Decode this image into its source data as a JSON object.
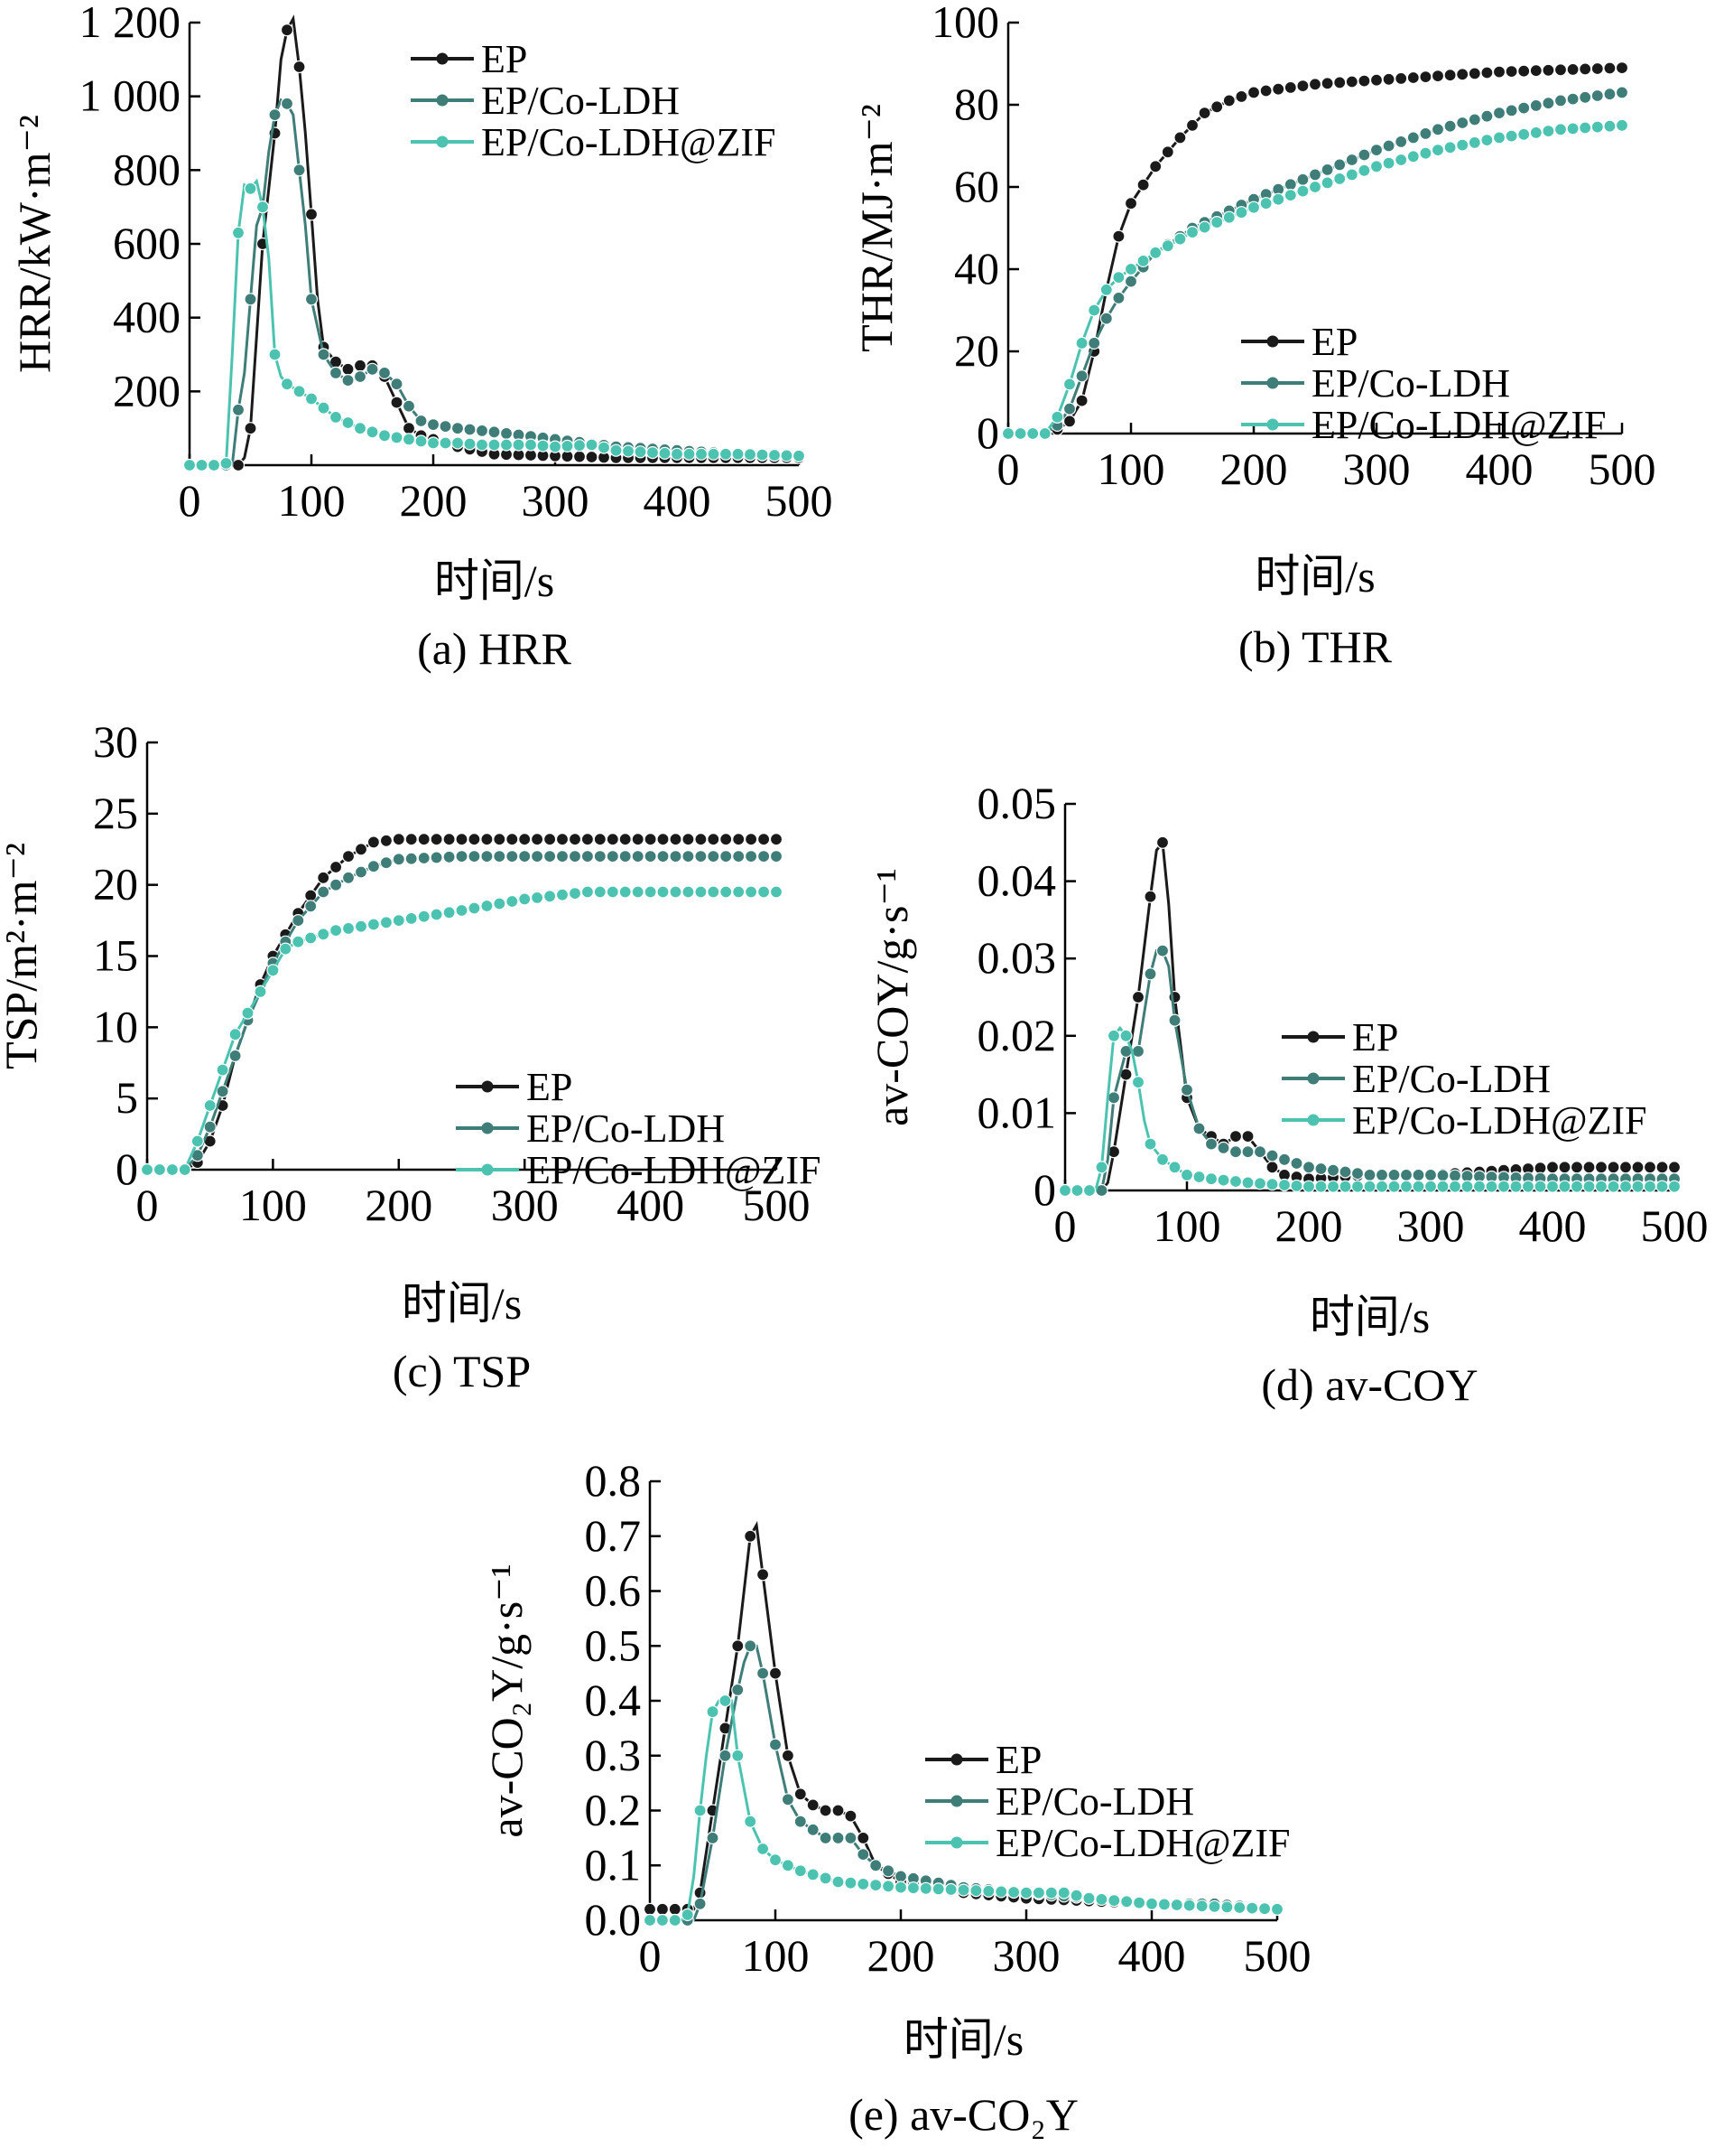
{
  "colors": {
    "EP": "#1a1a1a",
    "EP/Co-LDH": "#3f7d78",
    "EP/Co-LDH@ZIF": "#4cc3b0"
  },
  "chart_data": [
    {
      "id": "a",
      "type": "line",
      "caption": "(a) HRR",
      "xlabel": "时间/s",
      "ylabel": "HRR/kW·m⁻²",
      "xlim": [
        0,
        500
      ],
      "ylim": [
        0,
        1200
      ],
      "xticks": [
        0,
        100,
        200,
        300,
        400,
        500
      ],
      "xtick_labels": [
        "0",
        "100",
        "200",
        "300",
        "400",
        "500"
      ],
      "yticks": [
        200,
        400,
        600,
        800,
        1000,
        1200
      ],
      "ytick_labels": [
        "200",
        "400",
        "600",
        "800",
        "1 000",
        "1 200"
      ],
      "legend_position": "top-right",
      "series": [
        {
          "name": "EP",
          "x": [
            0,
            40,
            45,
            50,
            55,
            60,
            65,
            70,
            75,
            80,
            85,
            90,
            95,
            100,
            105,
            110,
            120,
            130,
            140,
            150,
            160,
            170,
            180,
            190,
            200,
            220,
            250,
            300,
            350,
            400,
            450,
            500
          ],
          "y": [
            0,
            0,
            20,
            100,
            350,
            600,
            750,
            900,
            1100,
            1180,
            1210,
            1080,
            900,
            680,
            450,
            320,
            280,
            260,
            270,
            270,
            240,
            170,
            100,
            80,
            70,
            50,
            30,
            25,
            20,
            20,
            20,
            20
          ]
        },
        {
          "name": "EP/Co-LDH",
          "x": [
            0,
            35,
            40,
            45,
            50,
            55,
            60,
            65,
            70,
            75,
            80,
            85,
            90,
            95,
            100,
            110,
            120,
            130,
            140,
            150,
            160,
            170,
            180,
            190,
            200,
            220,
            250,
            300,
            350,
            400,
            450,
            500
          ],
          "y": [
            0,
            0,
            150,
            250,
            450,
            650,
            700,
            850,
            950,
            990,
            980,
            950,
            800,
            650,
            450,
            300,
            250,
            230,
            240,
            260,
            250,
            220,
            160,
            120,
            110,
            100,
            90,
            70,
            50,
            40,
            30,
            25
          ]
        },
        {
          "name": "EP/Co-LDH@ZIF",
          "x": [
            0,
            25,
            30,
            35,
            40,
            45,
            50,
            55,
            60,
            65,
            70,
            75,
            80,
            90,
            100,
            120,
            140,
            160,
            180,
            200,
            220,
            240,
            260,
            280,
            300,
            330,
            350,
            400,
            450,
            500
          ],
          "y": [
            0,
            0,
            5,
            300,
            630,
            760,
            750,
            770,
            700,
            560,
            300,
            240,
            220,
            200,
            180,
            130,
            100,
            80,
            70,
            60,
            60,
            55,
            55,
            55,
            50,
            55,
            40,
            30,
            30,
            25
          ]
        }
      ]
    },
    {
      "id": "b",
      "type": "line",
      "caption": "(b) THR",
      "xlabel": "时间/s",
      "ylabel": "THR/MJ·m⁻²",
      "xlim": [
        0,
        500
      ],
      "ylim": [
        0,
        100
      ],
      "xticks": [
        0,
        100,
        200,
        300,
        400,
        500
      ],
      "xtick_labels": [
        "0",
        "100",
        "200",
        "300",
        "400",
        "500"
      ],
      "yticks": [
        0,
        20,
        40,
        60,
        80,
        100
      ],
      "ytick_labels": [
        "0",
        "20",
        "40",
        "60",
        "80",
        "100"
      ],
      "legend_position": "lower-right",
      "series": [
        {
          "name": "EP",
          "x": [
            0,
            30,
            40,
            50,
            60,
            70,
            80,
            90,
            100,
            120,
            140,
            160,
            180,
            200,
            250,
            300,
            350,
            400,
            450,
            500
          ],
          "y": [
            0,
            0,
            1,
            3,
            8,
            20,
            35,
            48,
            56,
            65,
            72,
            78,
            81,
            83,
            85,
            86,
            87,
            88,
            88.5,
            89
          ]
        },
        {
          "name": "EP/Co-LDH",
          "x": [
            0,
            30,
            40,
            50,
            60,
            70,
            80,
            90,
            100,
            120,
            150,
            200,
            250,
            300,
            350,
            400,
            450,
            500
          ],
          "y": [
            0,
            0,
            2,
            6,
            14,
            22,
            28,
            33,
            37,
            44,
            50,
            57,
            63,
            69,
            74,
            78,
            81,
            83
          ]
        },
        {
          "name": "EP/Co-LDH@ZIF",
          "x": [
            0,
            30,
            40,
            50,
            60,
            70,
            80,
            90,
            100,
            120,
            150,
            200,
            250,
            300,
            350,
            400,
            450,
            500
          ],
          "y": [
            0,
            0,
            4,
            12,
            22,
            30,
            35,
            38,
            40,
            44,
            49,
            55,
            60,
            65,
            69,
            72,
            74,
            75
          ]
        }
      ]
    },
    {
      "id": "c",
      "type": "line",
      "caption": "(c) TSP",
      "xlabel": "时间/s",
      "ylabel": "TSP/m²·m⁻²",
      "xlim": [
        0,
        500
      ],
      "ylim": [
        0,
        30
      ],
      "xticks": [
        0,
        100,
        200,
        300,
        400,
        500
      ],
      "xtick_labels": [
        "0",
        "100",
        "200",
        "300",
        "400",
        "500"
      ],
      "yticks": [
        0,
        5,
        10,
        15,
        20,
        25,
        30
      ],
      "ytick_labels": [
        "0",
        "5",
        "10",
        "15",
        "20",
        "25",
        "30"
      ],
      "legend_position": "lower-right",
      "series": [
        {
          "name": "EP",
          "x": [
            0,
            30,
            40,
            50,
            60,
            70,
            80,
            90,
            100,
            120,
            140,
            160,
            180,
            200,
            250,
            300,
            400,
            500
          ],
          "y": [
            0,
            0,
            0.5,
            2,
            4.5,
            8,
            10.5,
            13,
            15,
            18,
            20.5,
            22,
            23,
            23.2,
            23.2,
            23.2,
            23.2,
            23.2
          ]
        },
        {
          "name": "EP/Co-LDH",
          "x": [
            0,
            30,
            40,
            50,
            60,
            70,
            80,
            90,
            100,
            120,
            140,
            160,
            180,
            200,
            250,
            300,
            400,
            500
          ],
          "y": [
            0,
            0,
            1,
            3,
            5.5,
            8,
            10.5,
            12.5,
            14.5,
            17.5,
            19.5,
            20.5,
            21.3,
            21.8,
            22,
            22,
            22,
            22
          ]
        },
        {
          "name": "EP/Co-LDH@ZIF",
          "x": [
            0,
            30,
            40,
            50,
            60,
            70,
            80,
            90,
            100,
            110,
            120,
            150,
            200,
            250,
            300,
            350,
            400,
            450,
            500
          ],
          "y": [
            0,
            0,
            2,
            4.5,
            7,
            9.5,
            11,
            12.5,
            14,
            15.5,
            16,
            16.8,
            17.5,
            18.2,
            19,
            19.5,
            19.5,
            19.5,
            19.5
          ]
        }
      ]
    },
    {
      "id": "d",
      "type": "line",
      "caption": "(d) av-COY",
      "xlabel": "时间/s",
      "ylabel": "av-COY/g·s⁻¹",
      "xlim": [
        0,
        500
      ],
      "ylim": [
        0,
        0.05
      ],
      "xticks": [
        0,
        100,
        200,
        300,
        400,
        500
      ],
      "xtick_labels": [
        "0",
        "100",
        "200",
        "300",
        "400",
        "500"
      ],
      "yticks": [
        0,
        0.01,
        0.02,
        0.03,
        0.04,
        0.05
      ],
      "ytick_labels": [
        "0",
        "0.01",
        "0.02",
        "0.03",
        "0.04",
        "0.05"
      ],
      "legend_position": "right",
      "series": [
        {
          "name": "EP",
          "x": [
            0,
            30,
            35,
            40,
            50,
            60,
            70,
            75,
            80,
            85,
            90,
            100,
            110,
            120,
            130,
            140,
            150,
            160,
            170,
            180,
            200,
            250,
            300,
            350,
            400,
            450,
            500
          ],
          "y": [
            0,
            0,
            0.001,
            0.005,
            0.015,
            0.025,
            0.038,
            0.044,
            0.045,
            0.037,
            0.025,
            0.012,
            0.008,
            0.007,
            0.006,
            0.007,
            0.007,
            0.005,
            0.003,
            0.002,
            0.0015,
            0.002,
            0.002,
            0.0025,
            0.003,
            0.003,
            0.003
          ]
        },
        {
          "name": "EP/Co-LDH",
          "x": [
            0,
            30,
            35,
            40,
            50,
            60,
            70,
            75,
            80,
            85,
            90,
            100,
            110,
            120,
            140,
            160,
            180,
            200,
            250,
            300,
            400,
            500
          ],
          "y": [
            0,
            0,
            0.004,
            0.012,
            0.018,
            0.018,
            0.028,
            0.031,
            0.031,
            0.029,
            0.022,
            0.013,
            0.008,
            0.006,
            0.005,
            0.005,
            0.004,
            0.003,
            0.002,
            0.002,
            0.0015,
            0.0015
          ]
        },
        {
          "name": "EP/Co-LDH@ZIF",
          "x": [
            0,
            25,
            30,
            35,
            40,
            45,
            50,
            55,
            60,
            65,
            70,
            80,
            90,
            100,
            120,
            150,
            200,
            250,
            300,
            400,
            500
          ],
          "y": [
            0,
            0,
            0.003,
            0.012,
            0.02,
            0.021,
            0.02,
            0.018,
            0.014,
            0.009,
            0.006,
            0.004,
            0.003,
            0.002,
            0.0015,
            0.001,
            0.0005,
            0.0005,
            0.0005,
            0.0005,
            0.0005
          ]
        }
      ]
    },
    {
      "id": "e",
      "type": "line",
      "caption": "(e) av-CO₂Y",
      "xlabel": "时间/s",
      "ylabel": "av-CO₂Y/g·s⁻¹",
      "xlim": [
        0,
        500
      ],
      "ylim": [
        0,
        0.8
      ],
      "xticks": [
        0,
        100,
        200,
        300,
        400,
        500
      ],
      "xtick_labels": [
        "0",
        "100",
        "200",
        "300",
        "400",
        "500"
      ],
      "yticks": [
        0,
        0.1,
        0.2,
        0.3,
        0.4,
        0.5,
        0.6,
        0.7,
        0.8
      ],
      "ytick_labels": [
        "0.0",
        "0.1",
        "0.2",
        "0.3",
        "0.4",
        "0.5",
        "0.6",
        "0.7",
        "0.8"
      ],
      "legend_position": "right",
      "series": [
        {
          "name": "EP",
          "x": [
            0,
            35,
            40,
            50,
            60,
            70,
            75,
            80,
            85,
            90,
            100,
            110,
            120,
            130,
            140,
            150,
            160,
            170,
            180,
            200,
            250,
            300,
            350,
            400,
            450,
            500
          ],
          "y": [
            0.02,
            0.02,
            0.05,
            0.2,
            0.35,
            0.5,
            0.6,
            0.7,
            0.72,
            0.63,
            0.45,
            0.3,
            0.23,
            0.21,
            0.2,
            0.2,
            0.19,
            0.15,
            0.1,
            0.07,
            0.05,
            0.04,
            0.035,
            0.03,
            0.03,
            0.02
          ]
        },
        {
          "name": "EP/Co-LDH",
          "x": [
            0,
            35,
            40,
            50,
            60,
            70,
            75,
            80,
            85,
            90,
            100,
            110,
            120,
            140,
            160,
            170,
            180,
            200,
            250,
            300,
            350,
            400,
            450,
            500
          ],
          "y": [
            0,
            0,
            0.03,
            0.15,
            0.3,
            0.42,
            0.47,
            0.5,
            0.5,
            0.45,
            0.32,
            0.22,
            0.18,
            0.15,
            0.15,
            0.12,
            0.1,
            0.08,
            0.06,
            0.05,
            0.04,
            0.03,
            0.03,
            0.02
          ]
        },
        {
          "name": "EP/Co-LDH@ZIF",
          "x": [
            0,
            25,
            30,
            35,
            40,
            45,
            50,
            55,
            60,
            65,
            70,
            80,
            90,
            100,
            120,
            150,
            200,
            250,
            300,
            330,
            350,
            400,
            500
          ],
          "y": [
            0,
            0,
            0.01,
            0.08,
            0.2,
            0.3,
            0.38,
            0.4,
            0.4,
            0.4,
            0.3,
            0.18,
            0.13,
            0.11,
            0.09,
            0.07,
            0.06,
            0.055,
            0.05,
            0.05,
            0.04,
            0.03,
            0.02
          ]
        }
      ]
    }
  ]
}
